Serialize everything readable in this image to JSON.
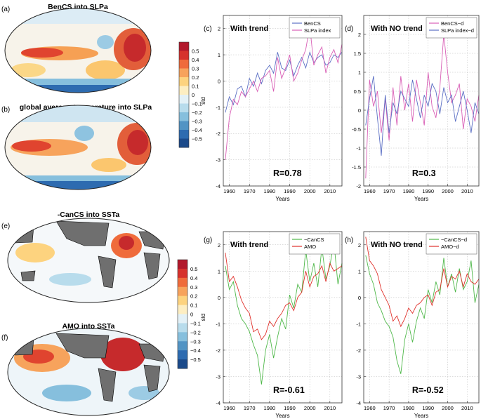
{
  "figure": {
    "maps": [
      {
        "letter": "(a)",
        "title": "BenCS into SLPa"
      },
      {
        "letter": "(b)",
        "title": "global average temperature into SLPa"
      },
      {
        "letter": "(e)",
        "title": "-CanCS into SSTa"
      },
      {
        "letter": "(f)",
        "title": "AMO into SSTa"
      }
    ],
    "colorbars": [
      {
        "ticks": [
          "0.5",
          "0.4",
          "0.3",
          "0.2",
          "0.1",
          "0",
          "−0.1",
          "−0.2",
          "−0.3",
          "−0.4",
          "−0.5"
        ],
        "colors": [
          "#b2182b",
          "#d6312c",
          "#ef6b3b",
          "#f7a35c",
          "#fdd37f",
          "#fdeec2",
          "#e3f1f7",
          "#b8dcec",
          "#86bfdd",
          "#5294c4",
          "#2d6bb0",
          "#1b4a8a"
        ]
      },
      {
        "ticks": [
          "0.5",
          "0.4",
          "0.3",
          "0.2",
          "0.1",
          "0",
          "−0.1",
          "−0.2",
          "−0.3",
          "−0.4",
          "−0.5"
        ],
        "colors": [
          "#b2182b",
          "#d6312c",
          "#ef6b3b",
          "#f7a35c",
          "#fdd37f",
          "#fdeec2",
          "#e3f1f7",
          "#b8dcec",
          "#86bfdd",
          "#5294c4",
          "#2d6bb0",
          "#1b4a8a"
        ]
      }
    ]
  },
  "chart_data": [
    {
      "panel": "(c)",
      "type": "line",
      "title": "With trend",
      "annotation": "R=0.78",
      "xlabel": "Years",
      "ylabel": "std",
      "xlim": [
        1957,
        2016
      ],
      "ylim": [
        -4,
        2.5
      ],
      "xticks": [
        1960,
        1970,
        1980,
        1990,
        2000,
        2010
      ],
      "yticks": [
        2,
        1,
        0,
        -1,
        -2,
        -3,
        -4
      ],
      "series": [
        {
          "name": "BenCS",
          "color": "#5b6fc4",
          "x": [
            1958,
            1960,
            1962,
            1964,
            1966,
            1968,
            1970,
            1972,
            1974,
            1976,
            1978,
            1980,
            1982,
            1984,
            1986,
            1988,
            1990,
            1992,
            1994,
            1996,
            1998,
            2000,
            2002,
            2004,
            2006,
            2008,
            2010,
            2012,
            2014,
            2016
          ],
          "y": [
            -1.2,
            -0.6,
            -0.9,
            -0.3,
            -0.2,
            -0.6,
            0.1,
            -0.2,
            0.3,
            -0.1,
            0.4,
            0.6,
            0.3,
            1.1,
            0.5,
            0.4,
            0.8,
            0.2,
            0.6,
            0.9,
            0.5,
            1.1,
            0.7,
            0.9,
            1.0,
            0.6,
            0.7,
            1.0,
            0.9,
            1.1
          ]
        },
        {
          "name": "SLPa index",
          "color": "#d95fb6",
          "x": [
            1958,
            1960,
            1962,
            1964,
            1966,
            1968,
            1970,
            1972,
            1974,
            1976,
            1978,
            1980,
            1982,
            1984,
            1986,
            1988,
            1990,
            1992,
            1994,
            1996,
            1998,
            2000,
            2002,
            2004,
            2006,
            2008,
            2010,
            2012,
            2014,
            2016
          ],
          "y": [
            -3.0,
            -1.4,
            -0.7,
            -0.9,
            -0.4,
            -0.6,
            -0.3,
            0.0,
            -0.4,
            0.1,
            0.2,
            0.4,
            -0.4,
            0.9,
            0.1,
            0.5,
            1.0,
            0.0,
            0.3,
            0.8,
            1.2,
            2.1,
            0.6,
            1.0,
            1.3,
            0.3,
            0.9,
            1.2,
            0.7,
            1.4
          ]
        }
      ]
    },
    {
      "panel": "(d)",
      "type": "line",
      "title": "With NO trend",
      "annotation": "R=0.3",
      "xlabel": "Years",
      "ylabel": "",
      "xlim": [
        1957,
        2016
      ],
      "ylim": [
        -2,
        2.5
      ],
      "xticks": [
        1960,
        1970,
        1980,
        1990,
        2000,
        2010
      ],
      "yticks": [
        2,
        1.5,
        1,
        0.5,
        0,
        -0.5,
        -1,
        -1.5,
        -2
      ],
      "series": [
        {
          "name": "BenCS−d",
          "color": "#d95fb6",
          "x": [
            1958,
            1960,
            1962,
            1964,
            1966,
            1968,
            1970,
            1972,
            1974,
            1976,
            1978,
            1980,
            1982,
            1984,
            1986,
            1988,
            1990,
            1992,
            1994,
            1996,
            1998,
            2000,
            2002,
            2004,
            2006,
            2008,
            2010,
            2012,
            2014,
            2016
          ],
          "y": [
            -1.8,
            0.8,
            0.1,
            0.5,
            -0.6,
            0.3,
            -0.8,
            0.6,
            -0.4,
            0.9,
            0.0,
            0.7,
            -0.3,
            0.8,
            0.2,
            -0.4,
            1.0,
            0.1,
            -0.2,
            0.6,
            2.0,
            1.0,
            0.2,
            0.4,
            0.7,
            -0.5,
            0.3,
            0.1,
            -0.3,
            0.4
          ]
        },
        {
          "name": "SLPa index−d",
          "color": "#5b6fc4",
          "x": [
            1958,
            1960,
            1962,
            1964,
            1966,
            1968,
            1970,
            1972,
            1974,
            1976,
            1978,
            1980,
            1982,
            1984,
            1986,
            1988,
            1990,
            1992,
            1994,
            1996,
            1998,
            2000,
            2002,
            2004,
            2006,
            2008,
            2010,
            2012,
            2014,
            2016
          ],
          "y": [
            -0.4,
            0.3,
            0.9,
            -0.2,
            -1.2,
            0.4,
            -0.6,
            0.2,
            -0.1,
            0.5,
            0.3,
            0.1,
            0.8,
            0.3,
            -0.2,
            0.4,
            0.1,
            0.7,
            0.5,
            -0.1,
            0.6,
            0.2,
            0.4,
            -0.3,
            0.1,
            0.5,
            0.0,
            -0.6,
            0.2,
            -0.1
          ]
        }
      ]
    },
    {
      "panel": "(g)",
      "type": "line",
      "title": "With trend",
      "annotation": "R=-0.61",
      "xlabel": "Years",
      "ylabel": "std",
      "xlim": [
        1957,
        2016
      ],
      "ylim": [
        -4,
        2.5
      ],
      "xticks": [
        1960,
        1970,
        1980,
        1990,
        2000,
        2010
      ],
      "yticks": [
        2,
        1,
        0,
        -1,
        -2,
        -3,
        -4
      ],
      "series": [
        {
          "name": "−CanCS",
          "color": "#4fb84a",
          "x": [
            1958,
            1960,
            1962,
            1964,
            1966,
            1968,
            1970,
            1972,
            1974,
            1976,
            1978,
            1980,
            1982,
            1984,
            1986,
            1988,
            1990,
            1992,
            1994,
            1996,
            1998,
            2000,
            2002,
            2004,
            2006,
            2008,
            2010,
            2012,
            2014,
            2016
          ],
          "y": [
            1.2,
            0.3,
            0.6,
            -0.3,
            -0.8,
            -1.0,
            -1.3,
            -1.8,
            -2.2,
            -3.3,
            -2.0,
            -1.4,
            -2.3,
            -1.5,
            -0.8,
            -1.2,
            0.1,
            -0.4,
            0.5,
            0.2,
            1.8,
            0.6,
            1.3,
            0.4,
            1.9,
            0.7,
            1.2,
            2.1,
            0.5,
            1.3
          ]
        },
        {
          "name": "AMO",
          "color": "#e0312b",
          "x": [
            1958,
            1960,
            1962,
            1964,
            1966,
            1968,
            1970,
            1972,
            1974,
            1976,
            1978,
            1980,
            1982,
            1984,
            1986,
            1988,
            1990,
            1992,
            1994,
            1996,
            1998,
            2000,
            2002,
            2004,
            2006,
            2008,
            2010,
            2012,
            2014,
            2016
          ],
          "y": [
            1.7,
            0.6,
            0.8,
            0.4,
            -0.1,
            -0.4,
            -0.6,
            -1.3,
            -1.2,
            -1.6,
            -1.4,
            -0.9,
            -1.1,
            -0.8,
            -0.6,
            -0.3,
            -0.2,
            -0.5,
            0.0,
            0.2,
            1.0,
            0.4,
            0.8,
            0.9,
            1.2,
            0.6,
            1.3,
            1.0,
            1.1,
            1.2
          ]
        }
      ]
    },
    {
      "panel": "(h)",
      "type": "line",
      "title": "With NO trend",
      "annotation": "R=-0.52",
      "xlabel": "Years",
      "ylabel": "",
      "xlim": [
        1957,
        2016
      ],
      "ylim": [
        -4,
        2.5
      ],
      "xticks": [
        1960,
        1970,
        1980,
        1990,
        2000,
        2010
      ],
      "yticks": [
        2,
        1,
        0,
        -1,
        -2,
        -3,
        -4
      ],
      "series": [
        {
          "name": "−CanCS−d",
          "color": "#4fb84a",
          "x": [
            1958,
            1960,
            1962,
            1964,
            1966,
            1968,
            1970,
            1972,
            1974,
            1976,
            1978,
            1980,
            1982,
            1984,
            1986,
            1988,
            1990,
            1992,
            1994,
            1996,
            1998,
            2000,
            2002,
            2004,
            2006,
            2008,
            2010,
            2012,
            2014,
            2016
          ],
          "y": [
            1.6,
            0.9,
            0.5,
            -0.2,
            -0.5,
            -0.9,
            -1.1,
            -1.5,
            -2.4,
            -2.9,
            -1.6,
            -1.0,
            -1.7,
            -0.9,
            -0.4,
            -0.8,
            0.3,
            -0.2,
            0.6,
            0.1,
            1.5,
            0.4,
            0.9,
            0.2,
            1.1,
            0.3,
            0.6,
            1.4,
            -0.2,
            0.5
          ]
        },
        {
          "name": "AMO−d",
          "color": "#e0312b",
          "x": [
            1958,
            1960,
            1962,
            1964,
            1966,
            1968,
            1970,
            1972,
            1974,
            1976,
            1978,
            1980,
            1982,
            1984,
            1986,
            1988,
            1990,
            1992,
            1994,
            1996,
            1998,
            2000,
            2002,
            2004,
            2006,
            2008,
            2010,
            2012,
            2014,
            2016
          ],
          "y": [
            2.3,
            1.4,
            1.2,
            0.9,
            0.3,
            0.0,
            -0.3,
            -0.9,
            -0.7,
            -1.1,
            -0.8,
            -0.4,
            -0.6,
            -0.3,
            -0.2,
            0.0,
            0.1,
            -0.3,
            0.2,
            0.3,
            1.1,
            0.4,
            0.8,
            0.7,
            1.0,
            0.4,
            0.9,
            0.6,
            0.5,
            0.7
          ]
        }
      ]
    }
  ]
}
